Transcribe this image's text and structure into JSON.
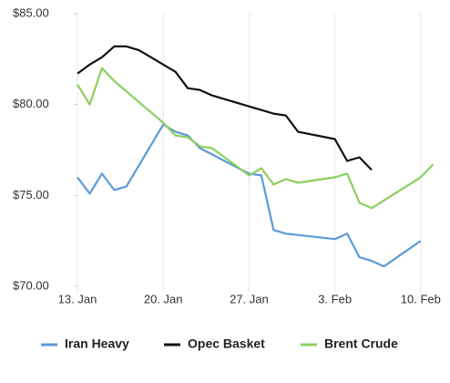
{
  "chart_data": {
    "type": "line",
    "xlim": [
      0,
      29.2
    ],
    "xticks": [
      {
        "value": 0,
        "label": "13. Jan"
      },
      {
        "value": 7,
        "label": "20. Jan"
      },
      {
        "value": 14,
        "label": "27. Jan"
      },
      {
        "value": 21,
        "label": "3. Feb"
      },
      {
        "value": 28,
        "label": "10. Feb"
      }
    ],
    "ylim": [
      70,
      85
    ],
    "yticks": [
      {
        "value": 70,
        "label": "$70.00"
      },
      {
        "value": 75,
        "label": "$75.00"
      },
      {
        "value": 80,
        "label": "$80.00"
      },
      {
        "value": 85,
        "label": "$85.00"
      }
    ],
    "grid": true,
    "legend": "bottom",
    "series": [
      {
        "name": "Iran Heavy",
        "color": "#5b9bd5",
        "x": [
          0,
          1,
          2,
          3,
          4,
          7,
          8,
          9,
          10,
          14,
          15,
          16,
          17,
          21,
          22,
          23,
          24,
          25,
          28
        ],
        "values": [
          76.0,
          75.1,
          76.2,
          75.3,
          75.5,
          78.9,
          78.5,
          78.3,
          77.6,
          76.2,
          76.1,
          73.1,
          72.9,
          72.6,
          72.9,
          71.6,
          71.4,
          71.1,
          72.5
        ]
      },
      {
        "name": "Opec Basket",
        "color": "#111111",
        "x": [
          0,
          1,
          2,
          3,
          4,
          5,
          6,
          7,
          8,
          9,
          10,
          11,
          14,
          16,
          17,
          18,
          21,
          22,
          23,
          24
        ],
        "values": [
          81.7,
          82.2,
          82.6,
          83.2,
          83.2,
          83.0,
          82.6,
          82.2,
          81.8,
          80.9,
          80.8,
          80.5,
          79.9,
          79.5,
          79.4,
          78.5,
          78.1,
          76.9,
          77.1,
          76.4
        ]
      },
      {
        "name": "Brent Crude",
        "color": "#8dcf5f",
        "x": [
          0,
          1,
          2,
          3,
          7,
          8,
          9,
          10,
          11,
          14,
          15,
          16,
          17,
          18,
          21,
          22,
          23,
          24,
          28,
          29
        ],
        "values": [
          81.1,
          80.0,
          82.0,
          81.3,
          79.0,
          78.3,
          78.2,
          77.7,
          77.6,
          76.1,
          76.5,
          75.6,
          75.9,
          75.7,
          76.0,
          76.2,
          74.6,
          74.3,
          76.0,
          76.7
        ]
      }
    ]
  }
}
